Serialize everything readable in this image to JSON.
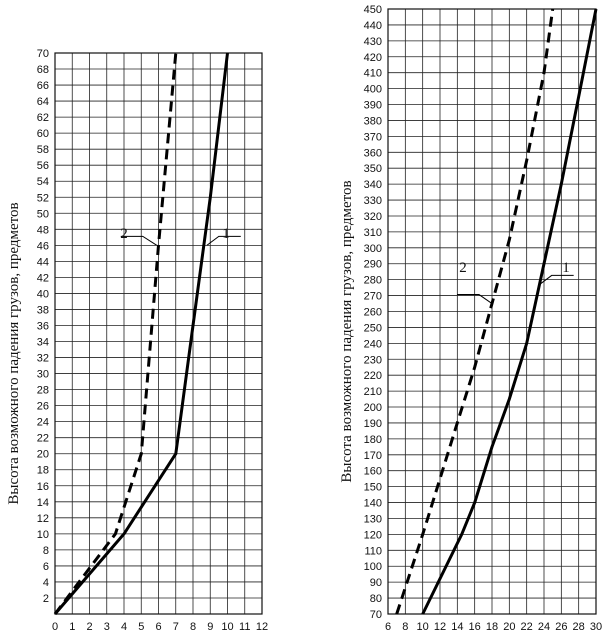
{
  "chart_data": [
    {
      "type": "line",
      "title": "",
      "ylabel": "Высота возможного падения грузов, предметов",
      "xlabel": "",
      "xlim": [
        0,
        12
      ],
      "ylim": [
        0,
        70
      ],
      "x_ticks": [
        0,
        1,
        2,
        3,
        4,
        5,
        6,
        7,
        8,
        9,
        10,
        11,
        12
      ],
      "y_ticks": [
        2,
        4,
        6,
        8,
        10,
        12,
        14,
        16,
        18,
        20,
        22,
        24,
        26,
        28,
        30,
        32,
        34,
        36,
        38,
        40,
        42,
        44,
        46,
        48,
        50,
        52,
        54,
        56,
        58,
        60,
        62,
        64,
        66,
        68,
        70
      ],
      "grid": true,
      "series": [
        {
          "name": "1",
          "style": "solid",
          "points": [
            [
              0,
              0
            ],
            [
              4,
              10
            ],
            [
              7,
              20
            ],
            [
              8,
              36
            ],
            [
              9,
              52
            ],
            [
              10,
              70
            ]
          ]
        },
        {
          "name": "2",
          "style": "dashed",
          "points": [
            [
              0,
              0
            ],
            [
              3.5,
              10
            ],
            [
              5,
              20
            ],
            [
              6,
              46
            ],
            [
              7,
              70
            ]
          ]
        }
      ],
      "callouts": [
        {
          "label": "2",
          "series": "2",
          "at": [
            5.9,
            46
          ]
        },
        {
          "label": "1",
          "series": "1",
          "at": [
            8.8,
            46
          ]
        }
      ]
    },
    {
      "type": "line",
      "title": "",
      "ylabel": "Высота возможного падения грузов, предметов",
      "xlabel": "",
      "xlim": [
        6,
        30
      ],
      "ylim": [
        70,
        450
      ],
      "x_ticks": [
        6,
        8,
        10,
        12,
        14,
        16,
        18,
        20,
        22,
        24,
        26,
        28,
        30
      ],
      "y_ticks": [
        70,
        80,
        90,
        100,
        110,
        120,
        130,
        140,
        150,
        160,
        170,
        180,
        190,
        200,
        210,
        220,
        230,
        240,
        250,
        260,
        270,
        280,
        290,
        300,
        310,
        320,
        330,
        340,
        350,
        360,
        370,
        380,
        390,
        400,
        410,
        420,
        430,
        440,
        450
      ],
      "grid": true,
      "series": [
        {
          "name": "1",
          "style": "solid",
          "points": [
            [
              10,
              70
            ],
            [
              14.5,
              120
            ],
            [
              16,
              140
            ],
            [
              18,
              175
            ],
            [
              20,
              205
            ],
            [
              22,
              240
            ],
            [
              24,
              290
            ],
            [
              26,
              340
            ],
            [
              28,
              395
            ],
            [
              30,
              450
            ]
          ]
        },
        {
          "name": "2",
          "style": "dashed",
          "points": [
            [
              7,
              70
            ],
            [
              10,
              120
            ],
            [
              12,
              155
            ],
            [
              14,
              190
            ],
            [
              16,
              225
            ],
            [
              18,
              265
            ],
            [
              20,
              305
            ],
            [
              22,
              355
            ],
            [
              24,
              410
            ],
            [
              25,
              450
            ]
          ]
        }
      ],
      "callouts": [
        {
          "label": "2",
          "series": "2",
          "at": [
            18,
            265
          ]
        },
        {
          "label": "1",
          "series": "1",
          "at": [
            23.5,
            277
          ]
        }
      ]
    }
  ]
}
